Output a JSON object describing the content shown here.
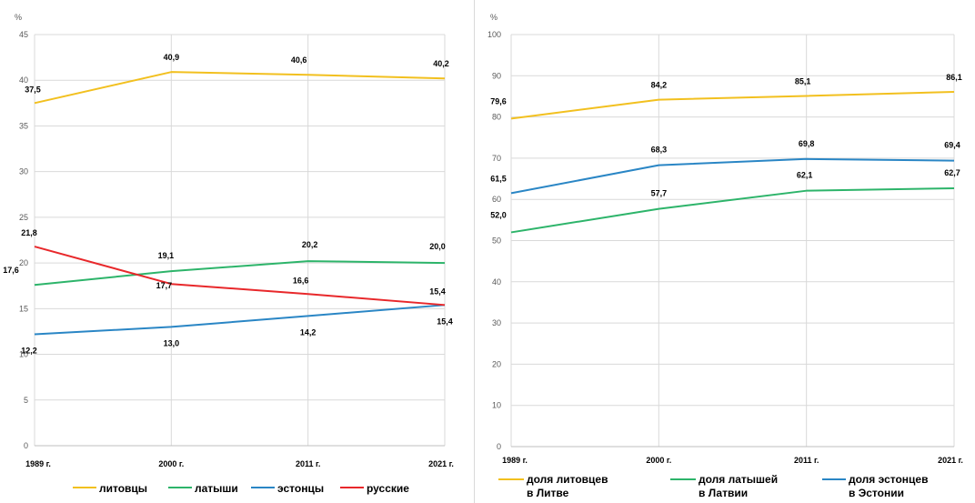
{
  "chart_data": [
    {
      "type": "line",
      "unit_label": "%",
      "categories": [
        "1989 г.",
        "2000 г.",
        "2011 г.",
        "2021 г."
      ],
      "ylim": [
        0,
        45
      ],
      "yticks": [
        0,
        5,
        10,
        15,
        20,
        25,
        30,
        35,
        40,
        45
      ],
      "grid": true,
      "legend_position": "bottom",
      "series": [
        {
          "name": "литовцы",
          "color": "#f2c01f",
          "values": [
            37.5,
            40.9,
            40.6,
            40.2
          ],
          "labels": [
            "37,5",
            "40,9",
            "40,6",
            "40,2"
          ]
        },
        {
          "name": "латыши",
          "color": "#2db46a",
          "values": [
            17.6,
            19.1,
            20.2,
            20.0
          ],
          "labels": [
            "17,6",
            "19,1",
            "20,2",
            "20,0"
          ]
        },
        {
          "name": "эстонцы",
          "color": "#2a86c5",
          "values": [
            12.2,
            13.0,
            14.2,
            15.4
          ],
          "labels": [
            "12,2",
            "13,0",
            "14,2",
            "15,4"
          ]
        },
        {
          "name": "русские",
          "color": "#e8282b",
          "values": [
            21.8,
            17.7,
            16.6,
            15.4
          ],
          "labels": [
            "21,8",
            "17,7",
            "16,6",
            "15,4"
          ]
        }
      ]
    },
    {
      "type": "line",
      "unit_label": "%",
      "categories": [
        "1989 г.",
        "2000 г.",
        "2011 г.",
        "2021 г."
      ],
      "ylim": [
        0,
        100
      ],
      "yticks": [
        0,
        10,
        20,
        30,
        40,
        50,
        60,
        70,
        80,
        90,
        100
      ],
      "grid": true,
      "legend_position": "bottom",
      "series": [
        {
          "name": "доля литовцев в Литве",
          "legend_lines": [
            "доля литовцев",
            "в Литве"
          ],
          "color": "#f2c01f",
          "values": [
            79.6,
            84.2,
            85.1,
            86.1
          ],
          "labels": [
            "79,6",
            "84,2",
            "85,1",
            "86,1"
          ]
        },
        {
          "name": "доля латышей в Латвии",
          "legend_lines": [
            "доля латышей",
            "в Латвии"
          ],
          "color": "#2db46a",
          "values": [
            52.0,
            57.7,
            62.1,
            62.7
          ],
          "labels": [
            "52,0",
            "57,7",
            "62,1",
            "62,7"
          ]
        },
        {
          "name": "доля эстонцев в Эстонии",
          "legend_lines": [
            "доля эстонцев",
            "в Эстонии"
          ],
          "color": "#2a86c5",
          "values": [
            61.5,
            68.3,
            69.8,
            69.4
          ],
          "labels": [
            "61,5",
            "68,3",
            "69,8",
            "69,4"
          ]
        }
      ]
    }
  ]
}
